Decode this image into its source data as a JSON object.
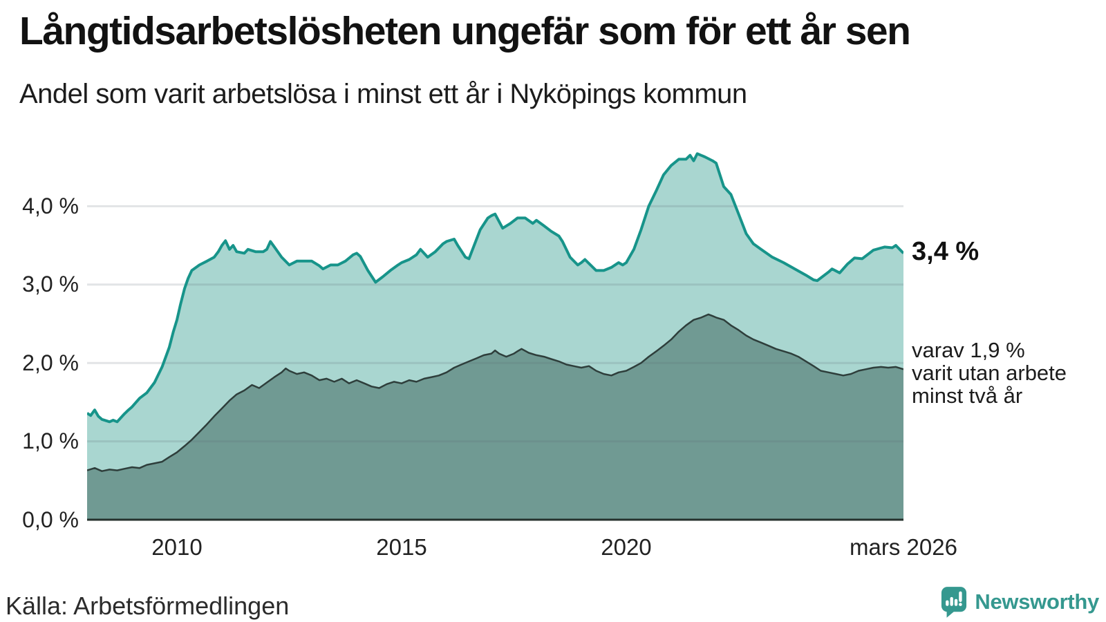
{
  "header": {
    "title": "Långtidsarbetslösheten ungefär som för ett år sen",
    "subtitle": "Andel som varit arbetslösa i minst ett år i Nyköpings kommun"
  },
  "chart_data": {
    "type": "area",
    "title": "Långtidsarbetslösheten ungefär som för ett år sen",
    "subtitle": "Andel som varit arbetslösa i minst ett år i Nyköpings kommun",
    "unit": "%",
    "grid": "horizontal",
    "legend_position": "right-of-line-ends",
    "x_axis": {
      "range": [
        2008.0,
        2026.17
      ],
      "ticks": [
        {
          "label": "2010",
          "year": 2010
        },
        {
          "label": "2015",
          "year": 2015
        },
        {
          "label": "2020",
          "year": 2020
        },
        {
          "label": "mars 2026",
          "year": 2026.17
        }
      ]
    },
    "y_axis": {
      "range": [
        0,
        5
      ],
      "gridlines": [
        1,
        2,
        3,
        4
      ],
      "tick_labels_top_down": [
        "4,0 %",
        "3,0 %",
        "2,0 %",
        "1,0 %",
        "0,0 %"
      ]
    },
    "series": [
      {
        "name": "Andel arbetslösa minst ett år",
        "end_value": 3.4,
        "end_label": "3,4 %",
        "line_color": "#17948a",
        "fill_color": "#a9d6d0",
        "line_width": 4,
        "x": [
          2008.0,
          2008.08,
          2008.17,
          2008.25,
          2008.33,
          2008.5,
          2008.58,
          2008.67,
          2008.83,
          2008.92,
          2009.0,
          2009.17,
          2009.33,
          2009.5,
          2009.67,
          2009.83,
          2009.92,
          2010.0,
          2010.08,
          2010.17,
          2010.25,
          2010.33,
          2010.5,
          2010.67,
          2010.83,
          2010.92,
          2011.0,
          2011.08,
          2011.17,
          2011.25,
          2011.33,
          2011.5,
          2011.58,
          2011.75,
          2011.92,
          2012.0,
          2012.08,
          2012.17,
          2012.33,
          2012.5,
          2012.67,
          2012.83,
          2013.0,
          2013.17,
          2013.25,
          2013.42,
          2013.58,
          2013.75,
          2013.92,
          2014.0,
          2014.08,
          2014.25,
          2014.42,
          2014.58,
          2014.75,
          2014.92,
          2015.0,
          2015.17,
          2015.33,
          2015.42,
          2015.58,
          2015.75,
          2015.92,
          2016.0,
          2016.17,
          2016.25,
          2016.42,
          2016.5,
          2016.58,
          2016.75,
          2016.92,
          2017.0,
          2017.08,
          2017.25,
          2017.42,
          2017.58,
          2017.75,
          2017.92,
          2018.0,
          2018.17,
          2018.33,
          2018.5,
          2018.58,
          2018.75,
          2018.92,
          2019.0,
          2019.08,
          2019.33,
          2019.5,
          2019.67,
          2019.83,
          2019.92,
          2020.0,
          2020.17,
          2020.33,
          2020.5,
          2020.67,
          2020.83,
          2021.0,
          2021.17,
          2021.33,
          2021.42,
          2021.5,
          2021.58,
          2021.75,
          2021.92,
          2022.0,
          2022.17,
          2022.33,
          2022.5,
          2022.67,
          2022.83,
          2023.0,
          2023.25,
          2023.5,
          2023.75,
          2024.0,
          2024.17,
          2024.25,
          2024.5,
          2024.58,
          2024.75,
          2024.92,
          2025.0,
          2025.08,
          2025.25,
          2025.5,
          2025.75,
          2025.92,
          2026.0,
          2026.17
        ],
        "y": [
          1.36,
          1.33,
          1.4,
          1.32,
          1.28,
          1.25,
          1.27,
          1.25,
          1.35,
          1.4,
          1.44,
          1.55,
          1.62,
          1.75,
          1.95,
          2.2,
          2.4,
          2.55,
          2.75,
          2.95,
          3.08,
          3.18,
          3.25,
          3.3,
          3.35,
          3.42,
          3.5,
          3.56,
          3.45,
          3.5,
          3.42,
          3.4,
          3.45,
          3.42,
          3.42,
          3.45,
          3.55,
          3.48,
          3.35,
          3.25,
          3.3,
          3.3,
          3.3,
          3.24,
          3.2,
          3.25,
          3.25,
          3.3,
          3.38,
          3.4,
          3.36,
          3.18,
          3.03,
          3.1,
          3.18,
          3.25,
          3.28,
          3.32,
          3.38,
          3.45,
          3.35,
          3.42,
          3.52,
          3.55,
          3.58,
          3.5,
          3.35,
          3.33,
          3.45,
          3.7,
          3.85,
          3.88,
          3.9,
          3.72,
          3.78,
          3.85,
          3.85,
          3.78,
          3.82,
          3.75,
          3.68,
          3.62,
          3.55,
          3.35,
          3.25,
          3.28,
          3.32,
          3.18,
          3.18,
          3.22,
          3.28,
          3.25,
          3.28,
          3.45,
          3.7,
          4.0,
          4.2,
          4.4,
          4.52,
          4.6,
          4.6,
          4.65,
          4.58,
          4.67,
          4.63,
          4.58,
          4.55,
          4.25,
          4.15,
          3.9,
          3.65,
          3.52,
          3.45,
          3.35,
          3.28,
          3.2,
          3.12,
          3.06,
          3.05,
          3.16,
          3.2,
          3.15,
          3.26,
          3.3,
          3.34,
          3.33,
          3.44,
          3.48,
          3.47,
          3.5,
          3.4
        ]
      },
      {
        "name": "varav utan arbete minst två år",
        "end_value": 1.9,
        "end_label": "varav 1,9 % varit utan arbete minst två år",
        "line_color": "#2e3e3b",
        "fill_color": "#709a93",
        "line_width": 2.5,
        "x": [
          2008.0,
          2008.17,
          2008.33,
          2008.5,
          2008.67,
          2008.83,
          2009.0,
          2009.17,
          2009.33,
          2009.5,
          2009.67,
          2009.83,
          2010.0,
          2010.17,
          2010.33,
          2010.5,
          2010.67,
          2010.83,
          2011.0,
          2011.17,
          2011.33,
          2011.5,
          2011.67,
          2011.83,
          2012.0,
          2012.17,
          2012.33,
          2012.42,
          2012.5,
          2012.67,
          2012.83,
          2013.0,
          2013.17,
          2013.33,
          2013.5,
          2013.67,
          2013.83,
          2014.0,
          2014.17,
          2014.33,
          2014.5,
          2014.67,
          2014.83,
          2015.0,
          2015.17,
          2015.33,
          2015.5,
          2015.67,
          2015.83,
          2016.0,
          2016.17,
          2016.33,
          2016.5,
          2016.67,
          2016.83,
          2017.0,
          2017.08,
          2017.17,
          2017.33,
          2017.5,
          2017.58,
          2017.67,
          2017.83,
          2018.0,
          2018.17,
          2018.33,
          2018.5,
          2018.67,
          2018.83,
          2019.0,
          2019.17,
          2019.33,
          2019.5,
          2019.67,
          2019.83,
          2020.0,
          2020.17,
          2020.33,
          2020.5,
          2020.67,
          2020.83,
          2021.0,
          2021.17,
          2021.33,
          2021.5,
          2021.67,
          2021.83,
          2021.92,
          2022.0,
          2022.17,
          2022.33,
          2022.5,
          2022.67,
          2022.83,
          2023.0,
          2023.17,
          2023.33,
          2023.5,
          2023.67,
          2023.83,
          2024.0,
          2024.17,
          2024.33,
          2024.5,
          2024.67,
          2024.83,
          2025.0,
          2025.17,
          2025.33,
          2025.5,
          2025.67,
          2025.83,
          2026.0,
          2026.17
        ],
        "y": [
          0.63,
          0.66,
          0.62,
          0.64,
          0.63,
          0.65,
          0.67,
          0.66,
          0.7,
          0.72,
          0.74,
          0.8,
          0.86,
          0.94,
          1.02,
          1.12,
          1.22,
          1.32,
          1.42,
          1.52,
          1.6,
          1.65,
          1.72,
          1.68,
          1.75,
          1.82,
          1.88,
          1.93,
          1.9,
          1.86,
          1.88,
          1.84,
          1.78,
          1.8,
          1.76,
          1.8,
          1.74,
          1.78,
          1.74,
          1.7,
          1.68,
          1.73,
          1.76,
          1.74,
          1.78,
          1.76,
          1.8,
          1.82,
          1.84,
          1.88,
          1.94,
          1.98,
          2.02,
          2.06,
          2.1,
          2.12,
          2.16,
          2.12,
          2.08,
          2.12,
          2.15,
          2.18,
          2.13,
          2.1,
          2.08,
          2.05,
          2.02,
          1.98,
          1.96,
          1.94,
          1.96,
          1.9,
          1.86,
          1.84,
          1.88,
          1.9,
          1.95,
          2.0,
          2.08,
          2.15,
          2.22,
          2.3,
          2.4,
          2.48,
          2.55,
          2.58,
          2.62,
          2.6,
          2.58,
          2.55,
          2.48,
          2.42,
          2.35,
          2.3,
          2.26,
          2.22,
          2.18,
          2.15,
          2.12,
          2.08,
          2.02,
          1.96,
          1.9,
          1.88,
          1.86,
          1.84,
          1.86,
          1.9,
          1.92,
          1.94,
          1.95,
          1.94,
          1.95,
          1.92
        ]
      }
    ]
  },
  "annotations": {
    "value_label": "3,4 %",
    "sub_label_lines": [
      "varav 1,9 %",
      "varit utan arbete",
      "minst två år"
    ]
  },
  "footer": {
    "source": "Källa: Arbetsförmedlingen",
    "logo_text": "Newsworthy"
  },
  "colors": {
    "line_primary": "#17948a",
    "fill_primary": "#a9d6d0",
    "line_secondary": "#2e3e3b",
    "fill_secondary": "#709a93",
    "axis_line": "#25302d",
    "gridline": "#e3e3e7",
    "logo_teal": "#35988f",
    "text": "#161616"
  }
}
